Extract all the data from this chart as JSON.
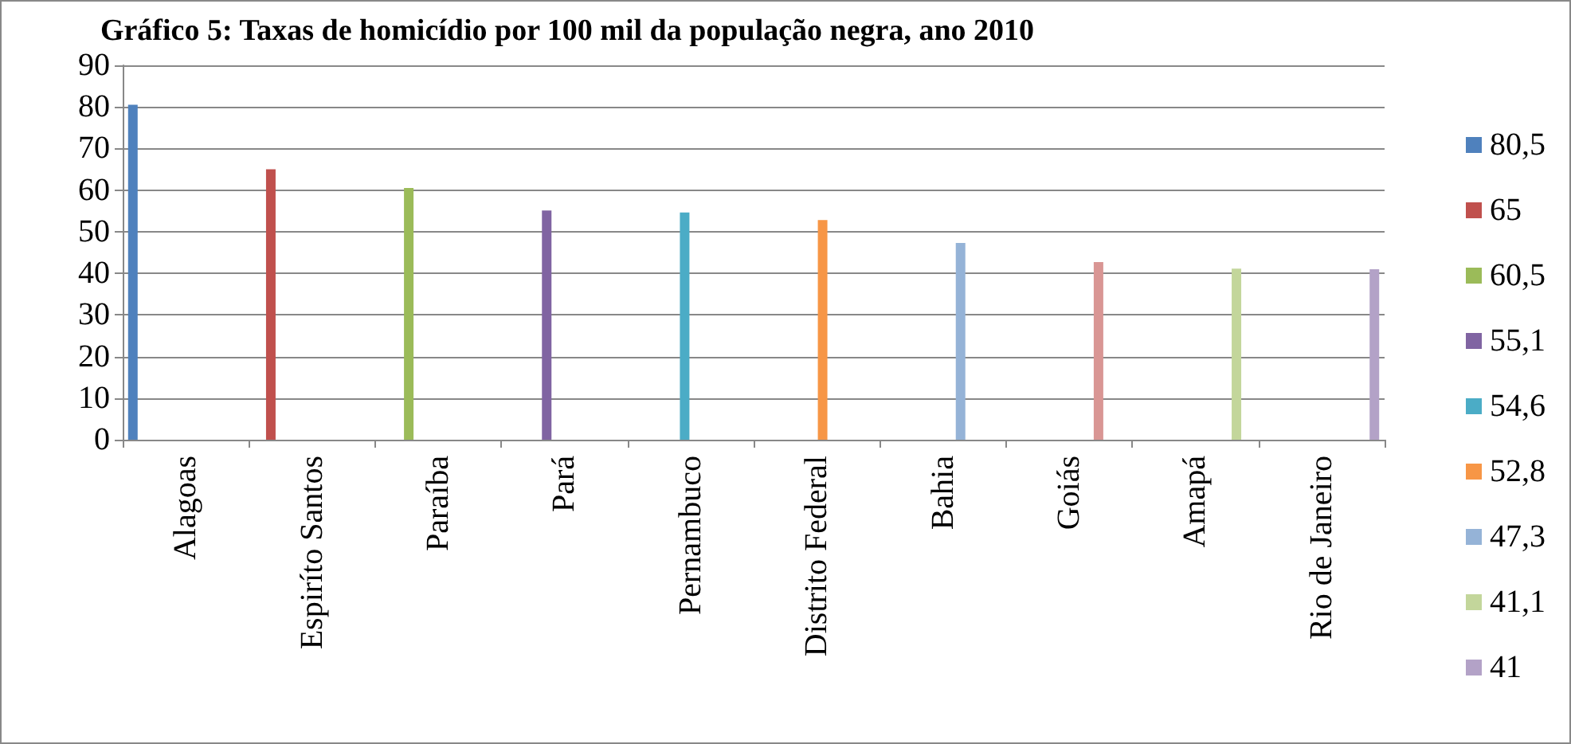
{
  "chart_data": {
    "type": "bar",
    "title": "Gráfico 5: Taxas de homicídio por 100 mil da população negra, ano 2010",
    "categories": [
      "Alagoas",
      "Espiríto Santos",
      "Paraíba",
      "Pará",
      "Pernambuco",
      "Distrito Federal",
      "Bahia",
      "Goiás",
      "Amapá",
      "Rio de Janeiro"
    ],
    "series": [
      {
        "name": "80,5",
        "color": "#4f81bd",
        "values": [
          80.5,
          null,
          null,
          null,
          null,
          null,
          null,
          null,
          null,
          null
        ]
      },
      {
        "name": "65",
        "color": "#c0504d",
        "values": [
          null,
          65,
          null,
          null,
          null,
          null,
          null,
          null,
          null,
          null
        ]
      },
      {
        "name": "60,5",
        "color": "#9bbb59",
        "values": [
          null,
          null,
          60.5,
          null,
          null,
          null,
          null,
          null,
          null,
          null
        ]
      },
      {
        "name": "55,1",
        "color": "#8064a2",
        "values": [
          null,
          null,
          null,
          55.1,
          null,
          null,
          null,
          null,
          null,
          null
        ]
      },
      {
        "name": "54,6",
        "color": "#4bacc6",
        "values": [
          null,
          null,
          null,
          null,
          54.6,
          null,
          null,
          null,
          null,
          null
        ]
      },
      {
        "name": "52,8",
        "color": "#f79646",
        "values": [
          null,
          null,
          null,
          null,
          null,
          52.8,
          null,
          null,
          null,
          null
        ]
      },
      {
        "name": "47,3",
        "color": "#95b3d7",
        "values": [
          null,
          null,
          null,
          null,
          null,
          null,
          47.3,
          null,
          null,
          null
        ]
      },
      {
        "color": "#d99694",
        "values": [
          null,
          null,
          null,
          null,
          null,
          null,
          null,
          42.7,
          null,
          null
        ]
      },
      {
        "name": "41,1",
        "color": "#c3d69b",
        "values": [
          null,
          null,
          null,
          null,
          null,
          null,
          null,
          null,
          41.1,
          null
        ]
      },
      {
        "name": "41",
        "color": "#b3a2c7",
        "values": [
          null,
          null,
          null,
          null,
          null,
          null,
          null,
          null,
          null,
          41
        ]
      }
    ],
    "ylim": [
      0,
      90
    ],
    "yticks": [
      0,
      10,
      20,
      30,
      40,
      50,
      60,
      70,
      80,
      90
    ],
    "grid": "y",
    "legend": "right"
  }
}
